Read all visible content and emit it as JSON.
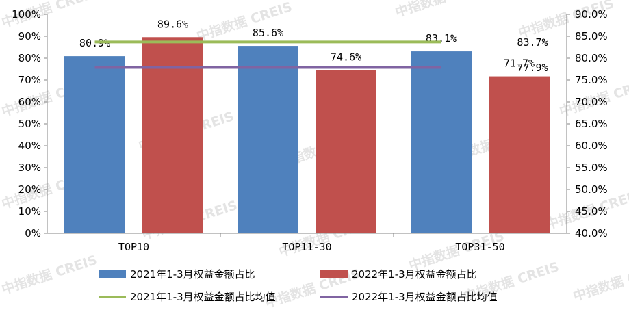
{
  "watermark": "中指数据 CREIS",
  "chart_data": {
    "type": "bar",
    "categories": [
      "TOP10",
      "TOP11-30",
      "TOP31-50"
    ],
    "series": [
      {
        "name": "2021年1-3月权益金额占比",
        "values": [
          80.9,
          85.6,
          83.1
        ],
        "labels": [
          "80.9%",
          "85.6%",
          "83.1%"
        ],
        "color": "#4f81bd"
      },
      {
        "name": "2022年1-3月权益金额占比",
        "values": [
          89.6,
          74.6,
          71.7
        ],
        "labels": [
          "89.6%",
          "74.6%",
          "71.7%"
        ],
        "color": "#c0504d"
      }
    ],
    "lines": [
      {
        "name": "2021年1-3月权益金额占比均值",
        "value": 83.7,
        "label": "83.7%",
        "axis": "right",
        "color": "#9bbb59"
      },
      {
        "name": "2022年1-3月权益金额占比均值",
        "value": 77.9,
        "label": "77.9%",
        "axis": "right",
        "color": "#8064a2"
      }
    ],
    "y_left": {
      "ylim": [
        0,
        100
      ],
      "ticks": [
        "0%",
        "10%",
        "20%",
        "30%",
        "40%",
        "50%",
        "60%",
        "70%",
        "80%",
        "90%",
        "100%"
      ]
    },
    "y_right": {
      "ylim": [
        40,
        90
      ],
      "ticks": [
        "40.0%",
        "45.0%",
        "50.0%",
        "55.0%",
        "60.0%",
        "65.0%",
        "70.0%",
        "75.0%",
        "80.0%",
        "85.0%",
        "90.0%"
      ]
    },
    "legend_position": "bottom",
    "grid": false
  }
}
